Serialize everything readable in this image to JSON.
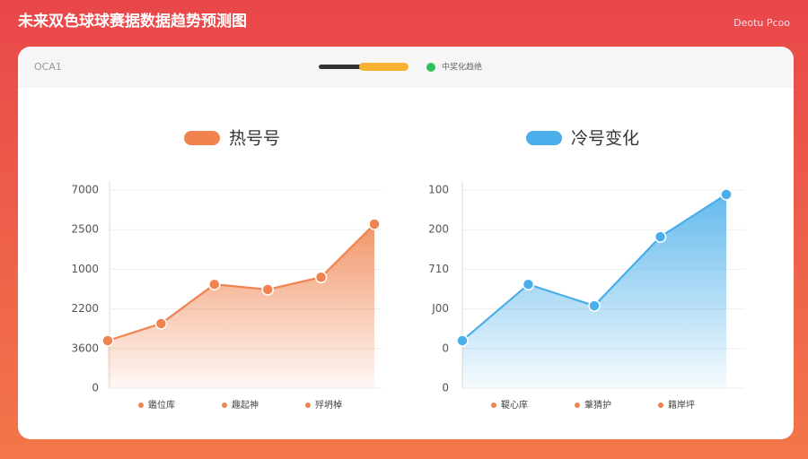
{
  "header": {
    "title": "未来双色球球赛据数据趋势预测图",
    "brand": "Deotu Pcoo"
  },
  "toolbar": {
    "label": "OCA1",
    "status": "中奖化趋绝"
  },
  "chart_data": [
    {
      "type": "line",
      "title": "热号号",
      "color": "#f0834f",
      "categories": [
        null,
        null,
        null,
        null,
        null,
        null
      ],
      "values": [
        1.2,
        1.63,
        2.62,
        2.49,
        2.8,
        4.14
      ],
      "ylim": [
        0,
        5
      ],
      "yticks": [
        0,
        {
          "value": 1,
          "label": "3600"
        },
        {
          "value": 2,
          "label": "2200"
        },
        {
          "value": 3,
          "label": "1000"
        },
        {
          "value": 4,
          "label": "2500"
        },
        {
          "value": 5,
          "label": "7000"
        }
      ],
      "grid": true,
      "legend": [
        "鑑位库",
        "趣起神",
        "殍坍棹"
      ]
    },
    {
      "type": "line",
      "title": "冷号变化",
      "color": "#4aaeea",
      "categories": [
        null,
        null,
        null,
        null,
        null
      ],
      "values": [
        1.2,
        2.62,
        2.08,
        3.82,
        4.89
      ],
      "ylim": [
        0,
        5
      ],
      "yticks": [
        0,
        {
          "value": 1,
          "label": "0"
        },
        {
          "value": 2,
          "label": "J00"
        },
        {
          "value": 3,
          "label": "710"
        },
        {
          "value": 4,
          "label": "200"
        },
        {
          "value": 5,
          "label": "100"
        }
      ],
      "grid": true,
      "legend": [
        "鞮心庠",
        "鞶猜护",
        "籍岸坪"
      ]
    }
  ]
}
